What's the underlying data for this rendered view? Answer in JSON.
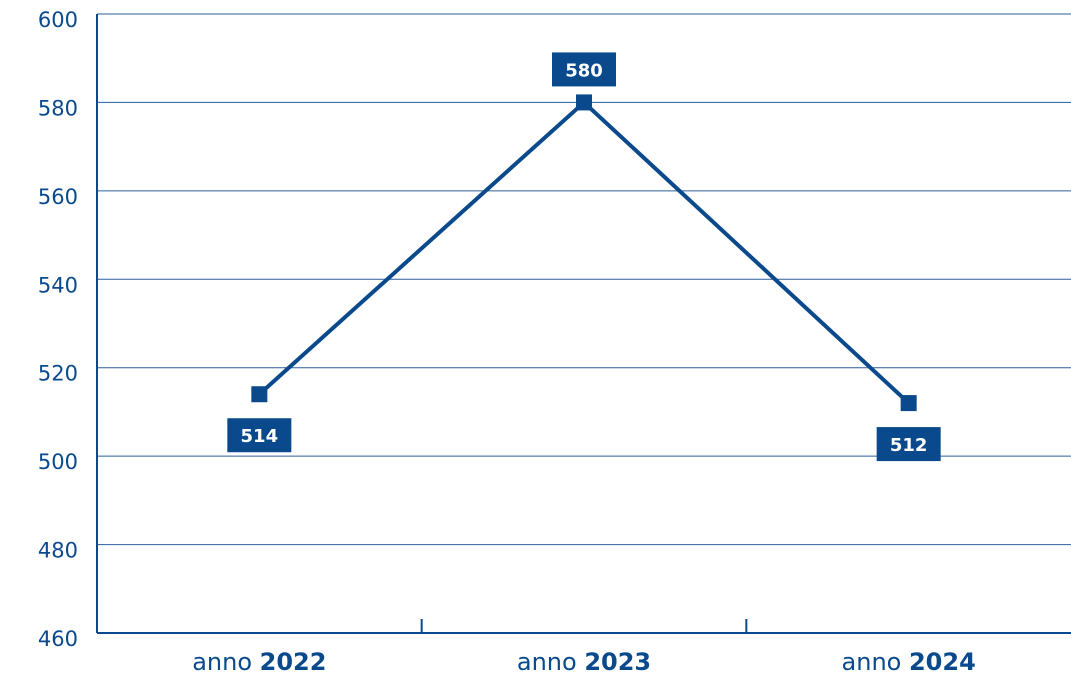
{
  "chart_data": {
    "type": "line",
    "categories": [
      "2022",
      "2023",
      "2024"
    ],
    "category_prefix": "anno",
    "values": [
      514,
      580,
      512
    ],
    "data_labels": [
      "514",
      "580",
      "512"
    ],
    "ylim": [
      460,
      600
    ],
    "yticks": [
      "460",
      "480",
      "500",
      "520",
      "540",
      "560",
      "580",
      "600"
    ],
    "grid": true,
    "line_color": "#0a4a8c",
    "axis_color": "#0a4a8c",
    "grid_color": "#2f5f99"
  }
}
